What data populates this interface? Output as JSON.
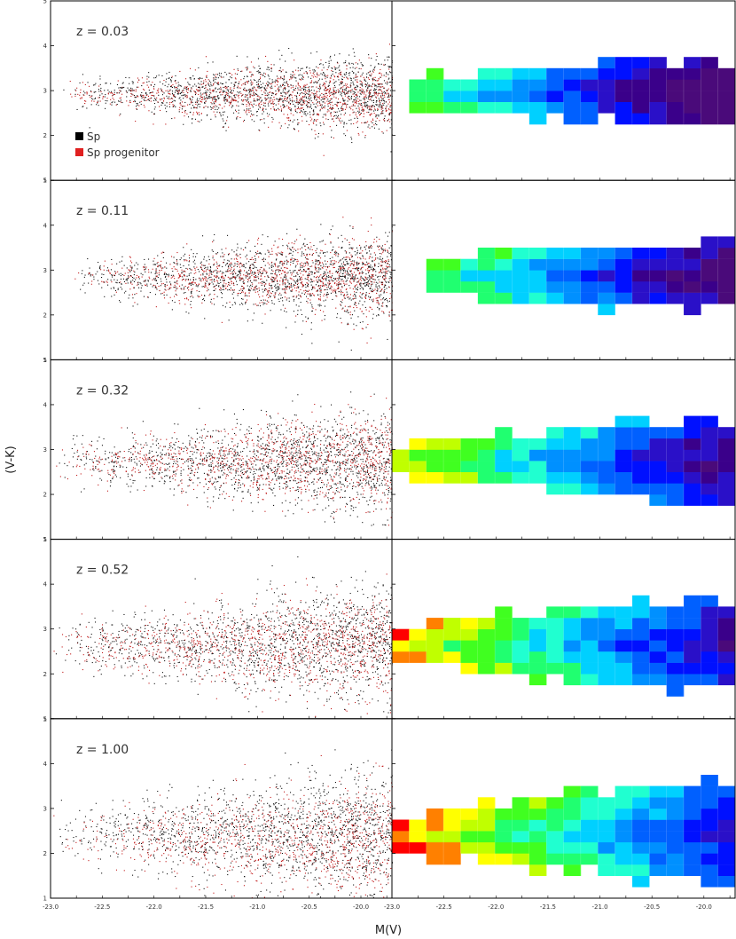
{
  "chart_data": {
    "type": "scatter",
    "layout": "5 rows x 2 columns; left column scatter, right column binned color map",
    "xlabel": "M(V)",
    "ylabel": "(V-K)",
    "xlim": [
      -23.0,
      -29.7
    ],
    "ylim": [
      1,
      5
    ],
    "left_xticks": [
      "-23.0",
      "-22.5",
      "-22.0",
      "-21.5",
      "-21.0",
      "-20.5",
      "-20.0"
    ],
    "right_xticks": [
      "-23.0",
      "-22.5",
      "-22.0",
      "-21.5",
      "-21.0",
      "-20.5",
      "-20.0"
    ],
    "yticks": [
      "1",
      "2",
      "3",
      "4",
      "5"
    ],
    "legend": {
      "placement": "left, top panel",
      "entries": [
        {
          "label": "Sp",
          "color": "#000000"
        },
        {
          "label": "Sp progenitor",
          "color": "#e02020"
        }
      ]
    },
    "colormap": [
      "#4a0a7a",
      "#3a008a",
      "#2a10c8",
      "#0010ff",
      "#0060ff",
      "#0090ff",
      "#00d0ff",
      "#20ffd0",
      "#20ff70",
      "#40ff20",
      "#c0ff00",
      "#ffff00",
      "#ff8000",
      "#ff0000"
    ],
    "panels": [
      {
        "redshift_label": "z = 0.03",
        "center_color": 2.95,
        "spread": 0.45,
        "progenitor_center": 2.9,
        "progenitor_spread": 0.4,
        "bright_limit": -22.9,
        "faint_limit": -19.7,
        "cmap_offset": 0
      },
      {
        "redshift_label": "z = 0.11",
        "center_color": 2.85,
        "spread": 0.5,
        "progenitor_center": 2.85,
        "progenitor_spread": 0.45,
        "bright_limit": -22.8,
        "faint_limit": -19.7,
        "cmap_offset": 1
      },
      {
        "redshift_label": "z = 0.32",
        "center_color": 2.75,
        "spread": 0.6,
        "progenitor_center": 2.75,
        "progenitor_spread": 0.55,
        "bright_limit": -23.0,
        "faint_limit": -19.7,
        "cmap_offset": 2
      },
      {
        "redshift_label": "z = 0.52",
        "center_color": 2.65,
        "spread": 0.7,
        "progenitor_center": 2.6,
        "progenitor_spread": 0.65,
        "bright_limit": -23.0,
        "faint_limit": -19.7,
        "cmap_offset": 3
      },
      {
        "redshift_label": "z = 1.00",
        "center_color": 2.45,
        "spread": 0.75,
        "progenitor_center": 2.3,
        "progenitor_spread": 0.7,
        "bright_limit": -23.0,
        "faint_limit": -19.7,
        "cmap_offset": 4
      }
    ]
  }
}
